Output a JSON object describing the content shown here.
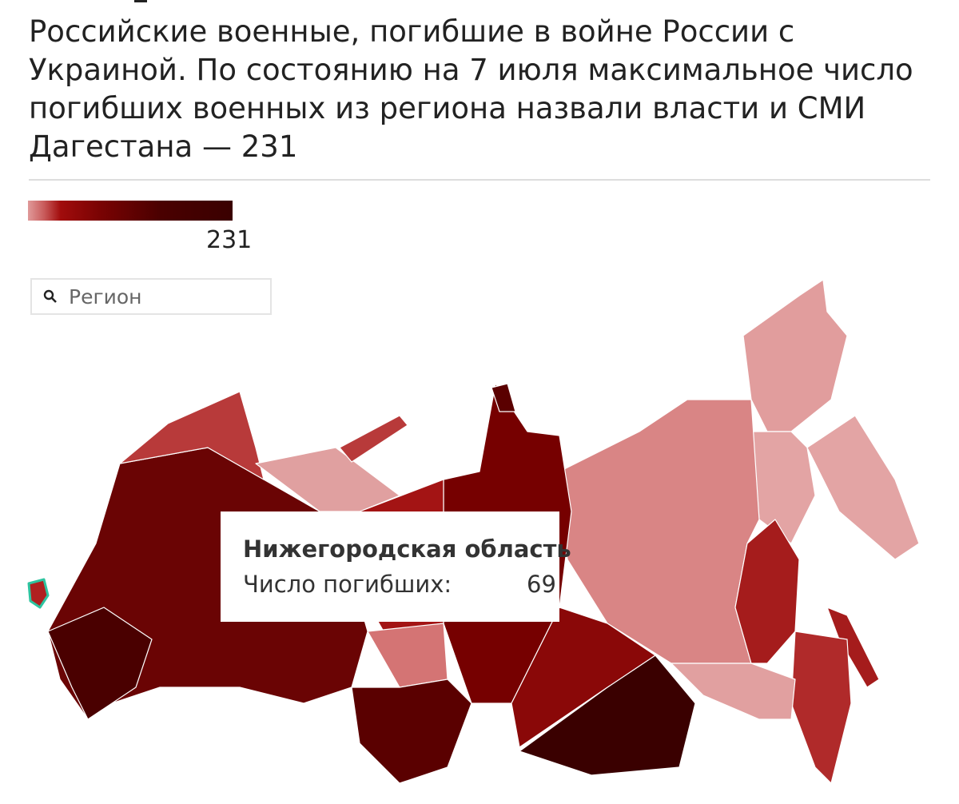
{
  "title": "Российские военные, погибшие в войне России с Украиной. По состоянию на 7 июля максимальное число погибших военных из региона назвали власти и СМИ Дагестана — 231",
  "legend": {
    "max_label": "231",
    "colors": [
      "#e09a9a",
      "#a10c0c",
      "#7a0303",
      "#3a0000"
    ]
  },
  "search": {
    "placeholder": "Регион",
    "icon": "search-icon"
  },
  "tooltip": {
    "region": "Нижегородская область",
    "label": "Число погибших:",
    "value": "69"
  },
  "highlight_color": "#2ec4a0"
}
